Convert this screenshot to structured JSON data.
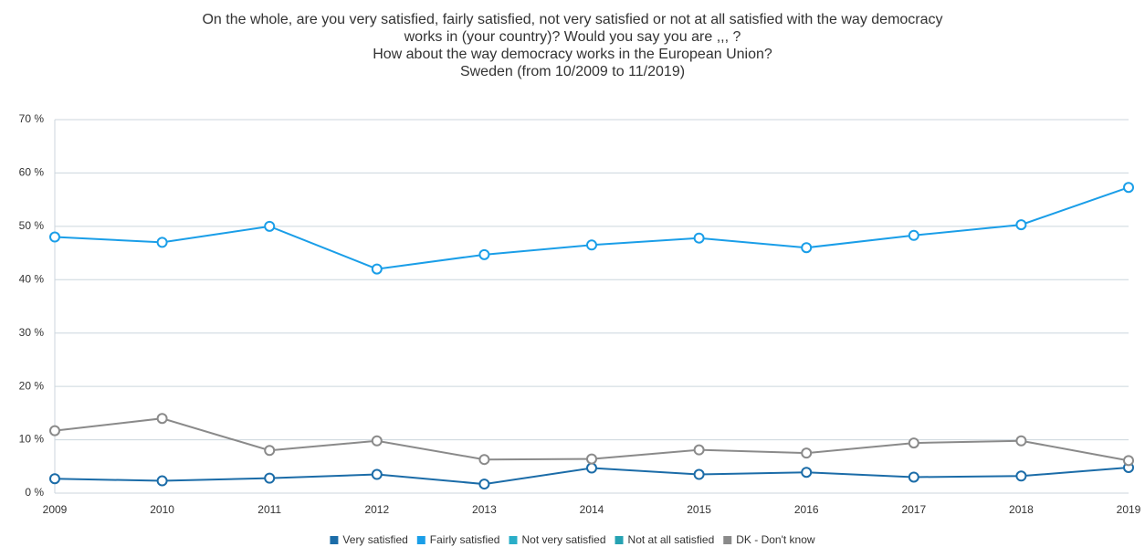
{
  "chart_data": {
    "type": "line",
    "title": [
      "On the whole, are you very satisfied, fairly satisfied, not very satisfied or not at all satisfied with the way democracy",
      "works in (your country)? Would you say you are ,,, ?",
      "How about the way democracy works in the European Union?",
      "Sweden (from 10/2009 to 11/2019)"
    ],
    "categories": [
      "2009",
      "2010",
      "2011",
      "2012",
      "2013",
      "2014",
      "2015",
      "2016",
      "2017",
      "2018",
      "2019"
    ],
    "series": [
      {
        "name": "Very satisfied",
        "color": "#1b6ca8",
        "visible": true,
        "values": [
          2.7,
          2.3,
          2.8,
          3.5,
          1.7,
          4.7,
          3.5,
          3.9,
          3.0,
          3.2,
          4.8
        ]
      },
      {
        "name": "Fairly satisfied",
        "color": "#1a9ee8",
        "visible": true,
        "values": [
          48,
          47,
          50,
          42,
          44.7,
          46.5,
          47.8,
          46,
          48.3,
          50.3,
          57.3
        ]
      },
      {
        "name": "Not very satisfied",
        "color": "#2aaec8",
        "visible": false,
        "values": [
          null,
          null,
          null,
          null,
          null,
          null,
          null,
          null,
          null,
          null,
          null
        ]
      },
      {
        "name": "Not at all satisfied",
        "color": "#26a2b2",
        "visible": false,
        "values": [
          null,
          null,
          null,
          null,
          null,
          null,
          null,
          null,
          null,
          null,
          null
        ]
      },
      {
        "name": "DK - Don't know",
        "color": "#8a8a8a",
        "visible": true,
        "values": [
          11.7,
          14,
          8,
          9.8,
          6.3,
          6.4,
          8.1,
          7.5,
          9.4,
          9.8,
          6.1
        ]
      }
    ],
    "ylim": [
      0,
      70
    ],
    "yticks": [
      {
        "value": 0,
        "label": "0 %"
      },
      {
        "value": 10,
        "label": "10 %"
      },
      {
        "value": 20,
        "label": "20 %"
      },
      {
        "value": 30,
        "label": "30 %"
      },
      {
        "value": 40,
        "label": "40 %"
      },
      {
        "value": 50,
        "label": "50 %"
      },
      {
        "value": 60,
        "label": "60 %"
      },
      {
        "value": 70,
        "label": "70 %"
      }
    ],
    "grid": true,
    "legend": "bottom"
  }
}
